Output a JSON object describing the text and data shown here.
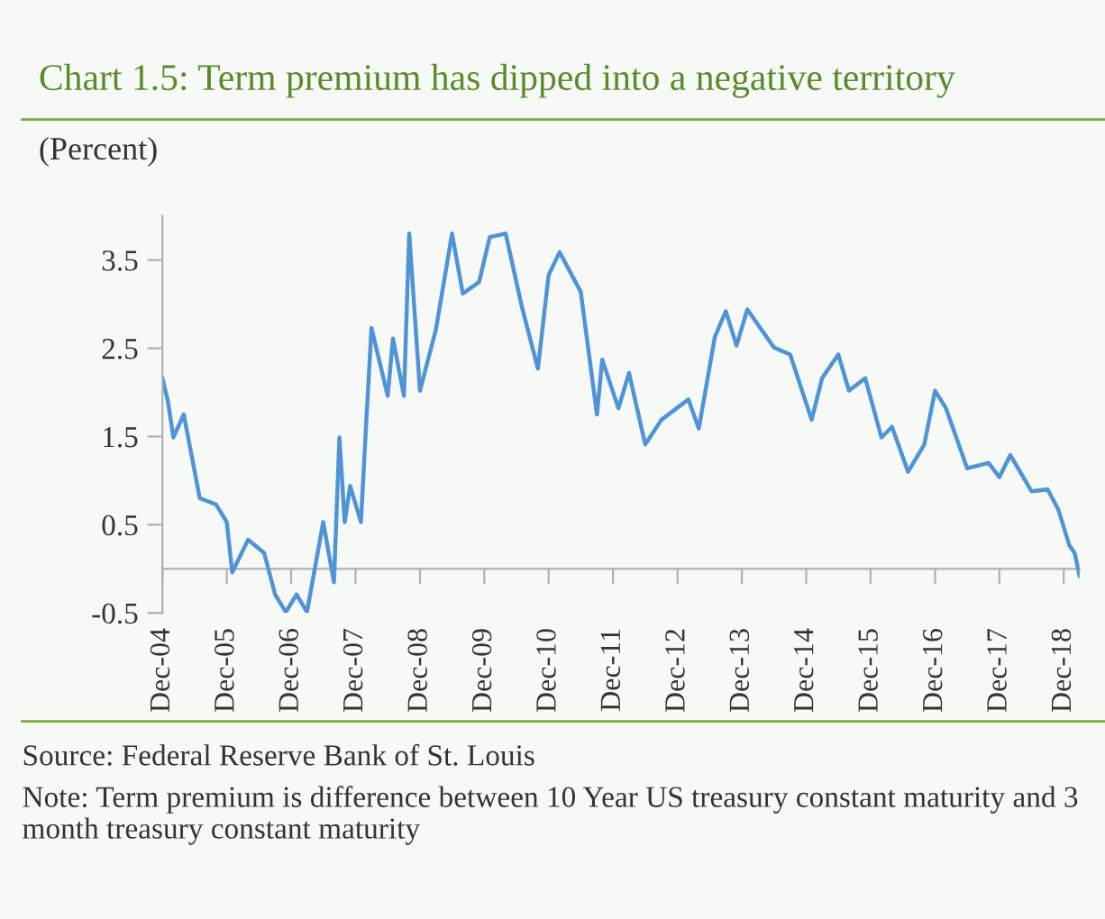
{
  "chart_data": {
    "type": "line",
    "title": "Chart 1.5: Term premium has dipped into a negative territory",
    "ylabel": "(Percent)",
    "x": [
      "2004-12",
      "2005-01",
      "2005-02",
      "2005-04",
      "2005-07",
      "2005-10",
      "2005-12",
      "2006-01",
      "2006-04",
      "2006-07",
      "2006-09",
      "2006-11",
      "2007-01",
      "2007-03",
      "2007-06",
      "2007-08",
      "2007-09",
      "2007-10",
      "2007-11",
      "2008-01",
      "2008-02",
      "2008-03",
      "2008-06",
      "2008-07",
      "2008-09",
      "2008-10",
      "2008-12",
      "2009-03",
      "2009-06",
      "2009-08",
      "2009-11",
      "2010-01",
      "2010-04",
      "2010-07",
      "2010-10",
      "2010-12",
      "2011-02",
      "2011-06",
      "2011-09",
      "2011-10",
      "2012-01",
      "2012-03",
      "2012-06",
      "2012-09",
      "2013-02",
      "2013-04",
      "2013-07",
      "2013-09",
      "2013-11",
      "2014-01",
      "2014-06",
      "2014-09",
      "2015-01",
      "2015-03",
      "2015-06",
      "2015-08",
      "2015-11",
      "2016-02",
      "2016-04",
      "2016-07",
      "2016-10",
      "2016-12",
      "2017-02",
      "2017-06",
      "2017-10",
      "2017-12",
      "2018-02",
      "2018-06",
      "2018-09",
      "2018-11",
      "2019-01",
      "2019-02",
      "2019-03"
    ],
    "series": [
      {
        "color": "#4f94d6",
        "values": [
          2.16,
          1.9,
          1.49,
          1.75,
          0.8,
          0.73,
          0.53,
          -0.04,
          0.33,
          0.18,
          -0.29,
          -0.49,
          -0.29,
          -0.49,
          0.53,
          -0.15,
          1.49,
          0.53,
          0.94,
          0.53,
          1.69,
          2.73,
          1.96,
          2.61,
          1.96,
          3.8,
          2.02,
          2.71,
          3.8,
          3.12,
          3.25,
          3.76,
          3.8,
          2.98,
          2.27,
          3.33,
          3.59,
          3.14,
          1.75,
          2.37,
          1.82,
          2.22,
          1.41,
          1.69,
          1.92,
          1.59,
          2.63,
          2.92,
          2.53,
          2.94,
          2.51,
          2.43,
          1.69,
          2.16,
          2.43,
          2.02,
          2.16,
          1.49,
          1.61,
          1.1,
          1.41,
          2.02,
          1.82,
          1.14,
          1.2,
          1.04,
          1.29,
          0.88,
          0.9,
          0.67,
          0.27,
          0.18,
          -0.08
        ]
      }
    ],
    "xlim": [
      "2004-12",
      "2019-03"
    ],
    "xticks": [
      {
        "value": "2004-12",
        "label": "Dec-04"
      },
      {
        "value": "2005-12",
        "label": "Dec-05"
      },
      {
        "value": "2006-12",
        "label": "Dec-06"
      },
      {
        "value": "2007-12",
        "label": "Dec-07"
      },
      {
        "value": "2008-12",
        "label": "Dec-08"
      },
      {
        "value": "2009-12",
        "label": "Dec-09"
      },
      {
        "value": "2010-12",
        "label": "Dec-10"
      },
      {
        "value": "2011-12",
        "label": "Dec-11"
      },
      {
        "value": "2012-12",
        "label": "Dec-12"
      },
      {
        "value": "2013-12",
        "label": "Dec-13"
      },
      {
        "value": "2014-12",
        "label": "Dec-14"
      },
      {
        "value": "2015-12",
        "label": "Dec-15"
      },
      {
        "value": "2016-12",
        "label": "Dec-16"
      },
      {
        "value": "2017-12",
        "label": "Dec-17"
      },
      {
        "value": "2018-12",
        "label": "Dec-18"
      }
    ],
    "ylim": [
      -0.5,
      4.0
    ],
    "yticks": [
      -0.5,
      0.5,
      1.5,
      2.5,
      3.5
    ],
    "grid": false,
    "marker": "none",
    "line_style": "solid",
    "annotations": [
      "Source: Federal Reserve Bank of St. Louis",
      "Note: Term premium is difference between 10 Year US treasury constant maturity and 3 month treasury constant maturity"
    ]
  }
}
